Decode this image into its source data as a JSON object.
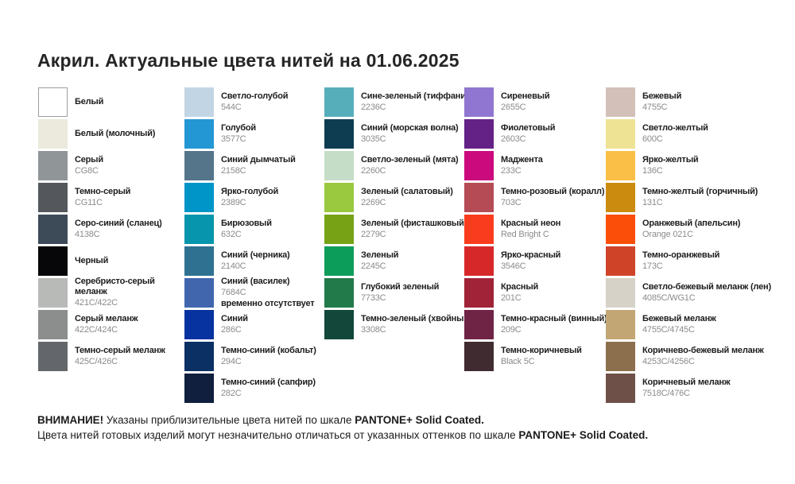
{
  "title": "Акрил. Актуальные цвета нитей на 01.06.2025",
  "columns": [
    {
      "swatches": [
        {
          "name": "Белый",
          "code": "",
          "color": "#ffffff",
          "bordered": true
        },
        {
          "name": "Белый (молочный)",
          "code": "",
          "color": "#ebeadd"
        },
        {
          "name": "Серый",
          "code": "CG8C",
          "color": "#909598"
        },
        {
          "name": "Темно-серый",
          "code": "CG11C",
          "color": "#54585c"
        },
        {
          "name": "Серо-синий (сланец)",
          "code": "4138C",
          "color": "#3d4b59"
        },
        {
          "name": "Черный",
          "code": "",
          "color": "#070709"
        },
        {
          "name": "Серебристо-серый\nмеланж",
          "code": "421C/422C",
          "color": "#b8bab8"
        },
        {
          "name": "Серый меланж",
          "code": "422C/424C",
          "color": "#8b8e8d"
        },
        {
          "name": "Темно-серый меланж",
          "code": "425C/426C",
          "color": "#63666a"
        }
      ]
    },
    {
      "swatches": [
        {
          "name": "Светло-голубой",
          "code": "544C",
          "color": "#c2d5e4"
        },
        {
          "name": "Голубой",
          "code": "3577C",
          "color": "#2397d3"
        },
        {
          "name": "Синий дымчатый",
          "code": "2158C",
          "color": "#54758a"
        },
        {
          "name": "Ярко-голубой",
          "code": "2389C",
          "color": "#0095c8"
        },
        {
          "name": "Бирюзовый",
          "code": "632C",
          "color": "#0695ac"
        },
        {
          "name": "Синий (черника)",
          "code": "2140C",
          "color": "#2e7190"
        },
        {
          "name": "Синий (василек)",
          "code": "7684C",
          "note": "временно отсутствует",
          "color": "#4166ae"
        },
        {
          "name": "Синий",
          "code": "286C",
          "color": "#0733a0"
        },
        {
          "name": "Темно-синий (кобальт)",
          "code": "294C",
          "color": "#0b3064"
        },
        {
          "name": "Темно-синий (сапфир)",
          "code": "282C",
          "color": "#101f3e"
        }
      ]
    },
    {
      "swatches": [
        {
          "name": "Сине-зеленый (тиффани)",
          "code": "2236C",
          "color": "#57aebb"
        },
        {
          "name": "Синий (морская волна)",
          "code": "3035C",
          "color": "#0e3d52"
        },
        {
          "name": "Светло-зеленый (мята)",
          "code": "2260C",
          "color": "#c5ddc7"
        },
        {
          "name": "Зеленый (салатовый)",
          "code": "2269C",
          "color": "#9ac83f"
        },
        {
          "name": "Зеленый (фисташковый)",
          "code": "2279C",
          "color": "#77a216"
        },
        {
          "name": "Зеленый",
          "code": "2245C",
          "color": "#0d9d5b"
        },
        {
          "name": "Глубокий зеленый",
          "code": "7733C",
          "color": "#22794a"
        },
        {
          "name": "Темно-зеленый (хвойный)",
          "code": "3308C",
          "color": "#12473a"
        }
      ]
    },
    {
      "swatches": [
        {
          "name": "Сиреневый",
          "code": "2655C",
          "color": "#9076d0"
        },
        {
          "name": "Фиолетовый",
          "code": "2603C",
          "color": "#652286"
        },
        {
          "name": "Маджента",
          "code": "233C",
          "color": "#cb0a7e"
        },
        {
          "name": "Темно-розовый (коралл)",
          "code": "703C",
          "color": "#b54b55"
        },
        {
          "name": "Красный неон",
          "code": "Red Bright C",
          "color": "#fa3c1e"
        },
        {
          "name": "Ярко-красный",
          "code": "3546C",
          "color": "#d72829"
        },
        {
          "name": "Красный",
          "code": "201C",
          "color": "#a02337"
        },
        {
          "name": "Темно-красный (винный)",
          "code": "209C",
          "color": "#702445"
        },
        {
          "name": "Темно-коричневый",
          "code": "Black 5C",
          "color": "#3f2b30"
        }
      ]
    },
    {
      "swatches": [
        {
          "name": "Бежевый",
          "code": "4755C",
          "color": "#d3c0b9"
        },
        {
          "name": "Светло-желтый",
          "code": "600C",
          "color": "#eee394"
        },
        {
          "name": "Ярко-желтый",
          "code": "136C",
          "color": "#fabf47"
        },
        {
          "name": "Темно-желтый (горчичный)",
          "code": "131C",
          "color": "#cb8b0e"
        },
        {
          "name": "Оранжевый (апельсин)",
          "code": "Orange 021C",
          "color": "#fb4e09"
        },
        {
          "name": "Темно-оранжевый",
          "code": "173C",
          "color": "#cf4429"
        },
        {
          "name": "Светло-бежевый меланж (лен)",
          "code": "4085C/WG1C",
          "color": "#d6d2c8"
        },
        {
          "name": "Бежевый меланж",
          "code": "4755C/4745C",
          "color": "#c2a775"
        },
        {
          "name": "Коричнево-бежевый меланж",
          "code": "4253C/4256C",
          "color": "#8c6f4c"
        },
        {
          "name": "Коричневый меланж",
          "code": "7518C/476C",
          "color": "#6e5048"
        }
      ]
    }
  ],
  "footer": {
    "line1": [
      {
        "text": "ВНИМАНИЕ!",
        "bold": true
      },
      {
        "text": " Указаны приблизительные цвета нитей по шкале ",
        "bold": false
      },
      {
        "text": "PANTONE+ Solid Coated.",
        "bold": true
      }
    ],
    "line2": [
      {
        "text": "Цвета нитей готовых изделий могут незначительно отличаться от указанных оттенков по шкале ",
        "bold": false
      },
      {
        "text": "PANTONE+ Solid Coated.",
        "bold": true
      }
    ]
  }
}
